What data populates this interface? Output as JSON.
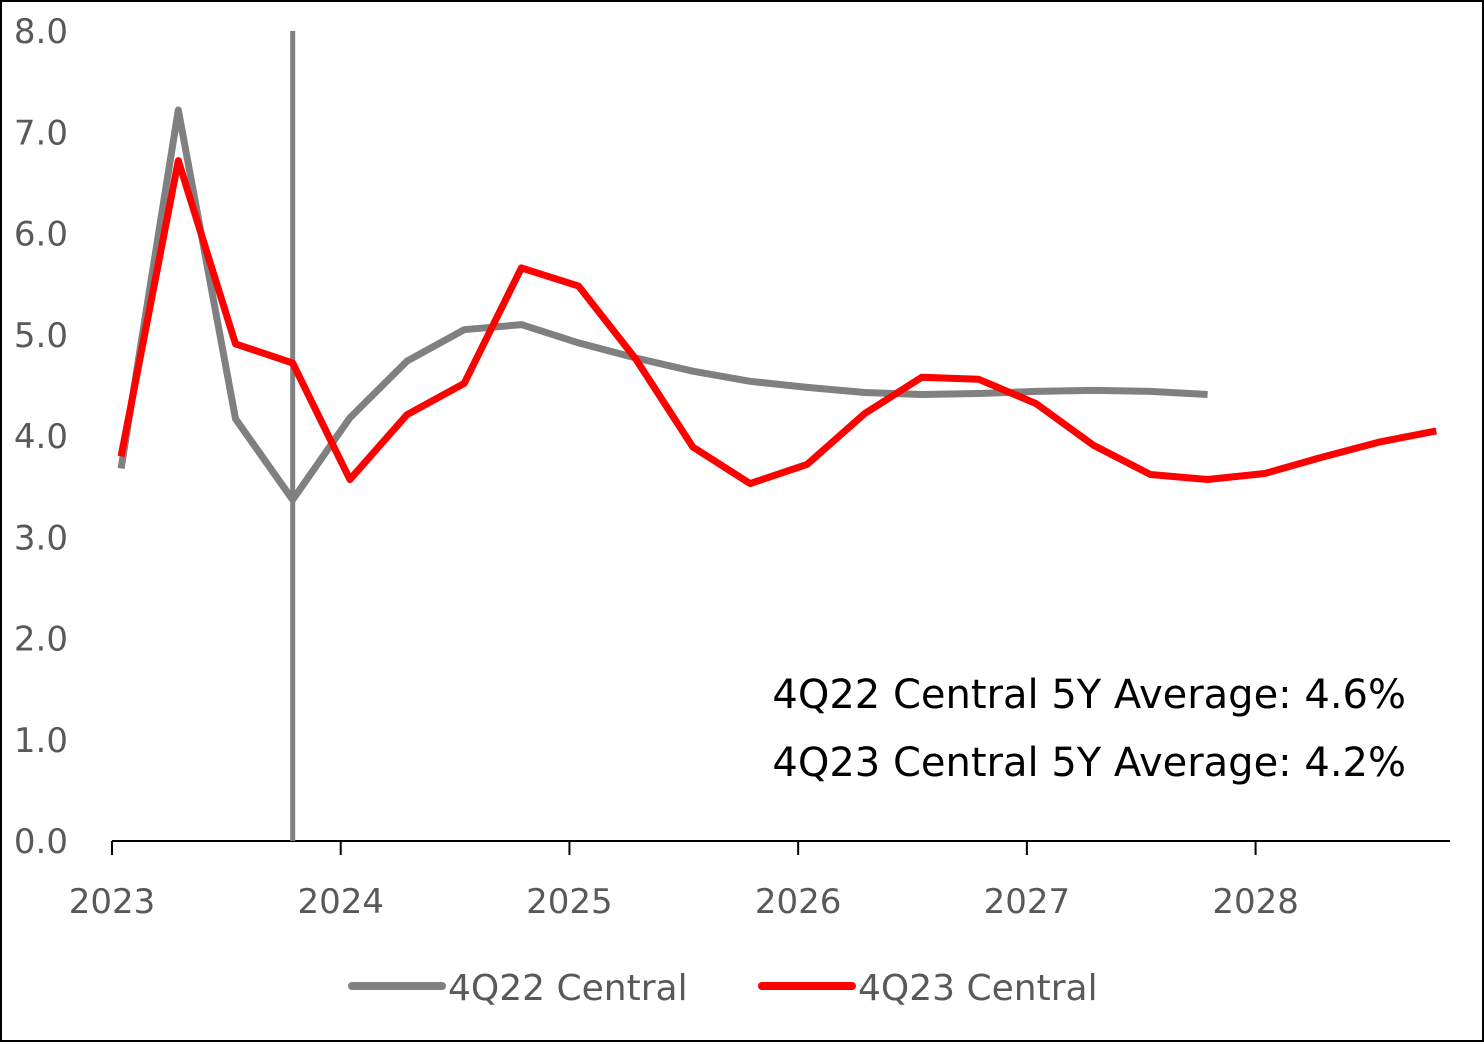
{
  "chart_data": {
    "type": "line",
    "title": "",
    "xlabel": "",
    "ylabel": "",
    "ylim": [
      0,
      8
    ],
    "yticks": [
      "0.0",
      "1.0",
      "2.0",
      "3.0",
      "4.0",
      "5.0",
      "6.0",
      "7.0",
      "8.0"
    ],
    "xlim": [
      2023.0,
      2028.85
    ],
    "xticks": [
      "2023",
      "2024",
      "2025",
      "2026",
      "2027",
      "2028"
    ],
    "grid": false,
    "legend_position": "bottom",
    "vertical_marker_x": 2023.79,
    "series": [
      {
        "name": "4Q22 Central",
        "color": "#808080",
        "x": [
          2023.04,
          2023.29,
          2023.54,
          2023.79,
          2024.04,
          2024.29,
          2024.54,
          2024.79,
          2025.04,
          2025.29,
          2025.54,
          2025.79,
          2026.04,
          2026.29,
          2026.54,
          2026.79,
          2027.04,
          2027.29,
          2027.54,
          2027.79
        ],
        "values": [
          3.68,
          7.22,
          4.17,
          3.37,
          4.18,
          4.74,
          5.05,
          5.1,
          4.92,
          4.77,
          4.64,
          4.54,
          4.48,
          4.43,
          4.41,
          4.42,
          4.44,
          4.45,
          4.44,
          4.41
        ]
      },
      {
        "name": "4Q23 Central",
        "color": "#ff0000",
        "x": [
          2023.04,
          2023.29,
          2023.54,
          2023.79,
          2024.04,
          2024.29,
          2024.54,
          2024.79,
          2025.04,
          2025.29,
          2025.54,
          2025.79,
          2026.04,
          2026.29,
          2026.54,
          2026.79,
          2027.04,
          2027.29,
          2027.54,
          2027.79,
          2028.04,
          2028.29,
          2028.54,
          2028.79
        ],
        "values": [
          3.8,
          6.72,
          4.91,
          4.72,
          3.57,
          4.21,
          4.52,
          5.66,
          5.48,
          4.76,
          3.89,
          3.53,
          3.72,
          4.22,
          4.58,
          4.56,
          4.32,
          3.91,
          3.62,
          3.57,
          3.63,
          3.79,
          3.94,
          4.05
        ]
      }
    ],
    "annotations": [
      "4Q22 Central 5Y Average: 4.6%",
      "4Q23 Central 5Y Average: 4.2%"
    ]
  }
}
